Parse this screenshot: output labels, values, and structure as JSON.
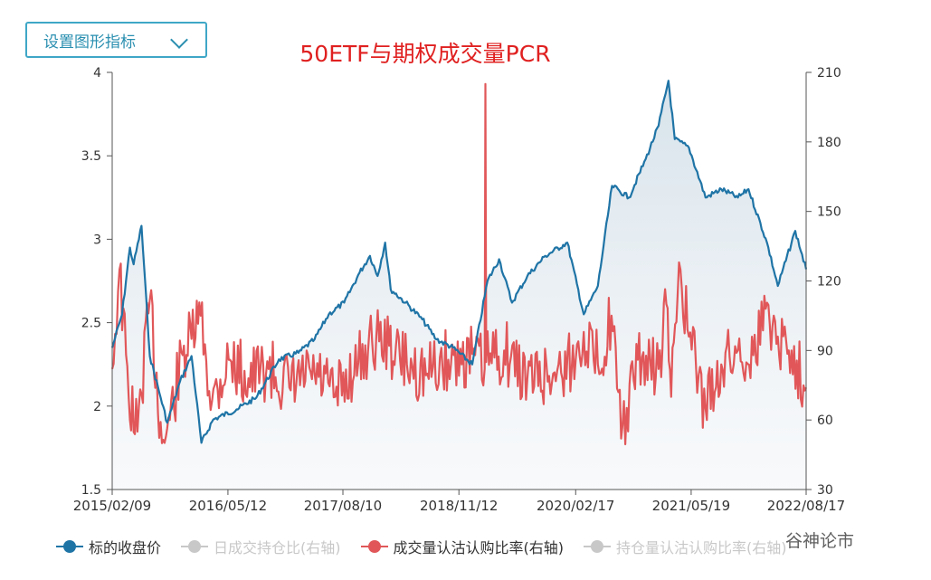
{
  "toolbar": {
    "settings_label": "设置图形指标"
  },
  "chart_data": {
    "type": "line",
    "title": "50ETF与期权成交量PCR",
    "x_tick_labels": [
      "2015/02/09",
      "2016/05/12",
      "2017/08/10",
      "2018/11/12",
      "2020/02/17",
      "2021/05/19",
      "2022/08/17"
    ],
    "y_left": {
      "range": [
        1.5,
        4
      ],
      "ticks": [
        "1.5",
        "2",
        "2.5",
        "3",
        "3.5",
        "4"
      ]
    },
    "y_right": {
      "range": [
        30,
        210
      ],
      "ticks": [
        "30",
        "60",
        "90",
        "120",
        "150",
        "180",
        "210"
      ]
    },
    "grid": false,
    "legend_position": "bottom",
    "series": [
      {
        "name": "标的收盘价",
        "axis": "left",
        "color": "#1f74a6",
        "points": [
          [
            "2015/02/09",
            2.35
          ],
          [
            "2015/03/20",
            2.55
          ],
          [
            "2015/04/20",
            2.95
          ],
          [
            "2015/05/05",
            2.85
          ],
          [
            "2015/06/05",
            3.08
          ],
          [
            "2015/07/08",
            2.3
          ],
          [
            "2015/08/20",
            2.05
          ],
          [
            "2015/09/15",
            1.9
          ],
          [
            "2015/11/05",
            2.15
          ],
          [
            "2015/12/20",
            2.3
          ],
          [
            "2016/01/28",
            1.78
          ],
          [
            "2016/03/15",
            1.92
          ],
          [
            "2016/06/15",
            1.98
          ],
          [
            "2016/09/01",
            2.05
          ],
          [
            "2016/11/30",
            2.28
          ],
          [
            "2017/02/15",
            2.32
          ],
          [
            "2017/04/20",
            2.4
          ],
          [
            "2017/06/15",
            2.55
          ],
          [
            "2017/08/15",
            2.62
          ],
          [
            "2017/10/15",
            2.8
          ],
          [
            "2017/11/25",
            2.9
          ],
          [
            "2017/12/25",
            2.78
          ],
          [
            "2018/01/24",
            2.98
          ],
          [
            "2018/02/15",
            2.7
          ],
          [
            "2018/04/15",
            2.62
          ],
          [
            "2018/06/20",
            2.52
          ],
          [
            "2018/08/15",
            2.4
          ],
          [
            "2018/10/20",
            2.35
          ],
          [
            "2019/01/04",
            2.25
          ],
          [
            "2019/03/05",
            2.75
          ],
          [
            "2019/04/20",
            2.88
          ],
          [
            "2019/06/10",
            2.62
          ],
          [
            "2019/08/10",
            2.78
          ],
          [
            "2019/10/20",
            2.9
          ],
          [
            "2020/01/15",
            2.98
          ],
          [
            "2020/03/20",
            2.55
          ],
          [
            "2020/05/15",
            2.72
          ],
          [
            "2020/07/10",
            3.32
          ],
          [
            "2020/09/15",
            3.25
          ],
          [
            "2020/11/20",
            3.48
          ],
          [
            "2021/01/10",
            3.68
          ],
          [
            "2021/02/18",
            3.95
          ],
          [
            "2021/03/15",
            3.6
          ],
          [
            "2021/05/10",
            3.55
          ],
          [
            "2021/07/15",
            3.25
          ],
          [
            "2021/09/15",
            3.3
          ],
          [
            "2021/11/20",
            3.25
          ],
          [
            "2022/01/01",
            3.3
          ],
          [
            "2022/03/15",
            2.98
          ],
          [
            "2022/04/27",
            2.72
          ],
          [
            "2022/07/05",
            3.05
          ],
          [
            "2022/08/17",
            2.82
          ]
        ]
      },
      {
        "name": "日成交持仓比(右轴)",
        "axis": "right",
        "visible": false,
        "color": "#c8c8c8",
        "points": []
      },
      {
        "name": "成交量认沽认购比率(右轴)",
        "axis": "right",
        "color": "#e15759",
        "points": [
          [
            "2015/02/09",
            82
          ],
          [
            "2015/03/10",
            125
          ],
          [
            "2015/04/15",
            70
          ],
          [
            "2015/05/20",
            55
          ],
          [
            "2015/07/08",
            112
          ],
          [
            "2015/08/25",
            50
          ],
          [
            "2015/09/25",
            60
          ],
          [
            "2015/11/15",
            88
          ],
          [
            "2015/12/20",
            95
          ],
          [
            "2016/01/25",
            105
          ],
          [
            "2016/03/10",
            68
          ],
          [
            "2016/05/15",
            86
          ],
          [
            "2016/08/01",
            78
          ],
          [
            "2016/10/20",
            82
          ],
          [
            "2017/01/10",
            74
          ],
          [
            "2017/04/20",
            80
          ],
          [
            "2017/07/10",
            70
          ],
          [
            "2017/10/10",
            85
          ],
          [
            "2017/12/20",
            96
          ],
          [
            "2018/02/09",
            92
          ],
          [
            "2018/04/20",
            84
          ],
          [
            "2018/07/10",
            80
          ],
          [
            "2018/10/01",
            86
          ],
          [
            "2019/01/15",
            88
          ],
          [
            "2019/02/22",
            82
          ],
          [
            "2019/02/25",
            205
          ],
          [
            "2019/02/28",
            85
          ],
          [
            "2019/05/10",
            90
          ],
          [
            "2019/08/10",
            78
          ],
          [
            "2019/11/20",
            80
          ],
          [
            "2020/02/17",
            86
          ],
          [
            "2020/03/20",
            98
          ],
          [
            "2020/05/15",
            84
          ],
          [
            "2020/07/08",
            105
          ],
          [
            "2020/08/15",
            52
          ],
          [
            "2020/10/20",
            86
          ],
          [
            "2021/01/10",
            82
          ],
          [
            "2021/02/10",
            110
          ],
          [
            "2021/03/01",
            70
          ],
          [
            "2021/04/01",
            128
          ],
          [
            "2021/05/10",
            96
          ],
          [
            "2021/07/15",
            65
          ],
          [
            "2021/09/15",
            84
          ],
          [
            "2021/11/20",
            90
          ],
          [
            "2022/01/20",
            88
          ],
          [
            "2022/03/10",
            108
          ],
          [
            "2022/04/27",
            96
          ],
          [
            "2022/06/20",
            90
          ],
          [
            "2022/08/17",
            74
          ]
        ]
      },
      {
        "name": "持仓量认沽认购比率(右轴)",
        "axis": "right",
        "visible": false,
        "color": "#c8c8c8",
        "points": []
      }
    ]
  },
  "watermark": {
    "text": "谷神论市"
  }
}
